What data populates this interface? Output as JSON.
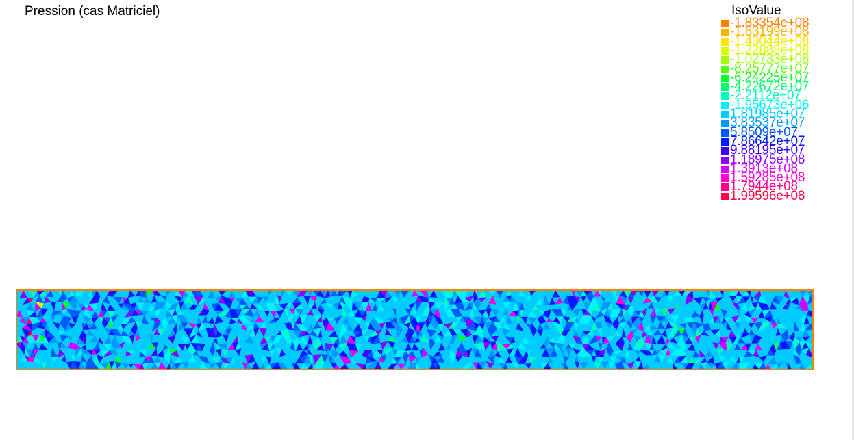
{
  "chart_data": {
    "type": "heatmap",
    "title": "Pression (cas Matriciel)",
    "legend_title": "IsoValue",
    "legend_placement": "top-right",
    "grid": false,
    "color_levels": [
      {
        "label": "-1.83354e+08",
        "color": "#ff7f00"
      },
      {
        "label": "-1.63199e+08",
        "color": "#ffb200"
      },
      {
        "label": "-1.43044e+08",
        "color": "#ffe600"
      },
      {
        "label": "-1.22888e+08",
        "color": "#d9ff00"
      },
      {
        "label": "-1.02733e+08",
        "color": "#a6ff00"
      },
      {
        "label": "-8.25777e+07",
        "color": "#59ff00"
      },
      {
        "label": "-6.24225e+07",
        "color": "#00ff26"
      },
      {
        "label": "-4.22672e+07",
        "color": "#00ff73"
      },
      {
        "label": "-2.2112e+07",
        "color": "#00ffbf"
      },
      {
        "label": "-1.95673e+06",
        "color": "#00f2ff"
      },
      {
        "label": "1.81985e+07",
        "color": "#00ccff"
      },
      {
        "label": "3.83537e+07",
        "color": "#0099ff"
      },
      {
        "label": "5.8509e+07",
        "color": "#0059ff"
      },
      {
        "label": "7.86642e+07",
        "color": "#0019ff"
      },
      {
        "label": "9.88195e+07",
        "color": "#4000ff"
      },
      {
        "label": "1.18975e+08",
        "color": "#8c00ff"
      },
      {
        "label": "1.3913e+08",
        "color": "#d900ff"
      },
      {
        "label": "1.59285e+08",
        "color": "#ff00d9"
      },
      {
        "label": "1.7944e+08",
        "color": "#ff008c"
      },
      {
        "label": "1.99596e+08",
        "color": "#ff0040"
      }
    ],
    "domain_border_color": "#ff7f00",
    "dominant_level_index": 10,
    "dense_levels": [
      9,
      10,
      11,
      12,
      13
    ],
    "accent_levels": [
      8,
      14,
      15,
      16
    ]
  }
}
